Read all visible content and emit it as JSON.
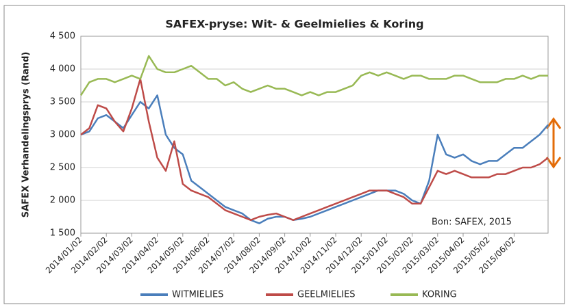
{
  "chart_data": {
    "type": "line",
    "title": "SAFEX-pryse: Wit- & Geelmielies & Koring",
    "y_label": "SAFEX Verhandelingsprys (Rand)",
    "annotation": "Bon: SAFEX, 2015",
    "categories": [
      "2014/01/02",
      null,
      null,
      "2014/02/02",
      null,
      null,
      "2014/03/02",
      null,
      null,
      "2014/04/02",
      null,
      null,
      "2014/05/02",
      null,
      null,
      "2014/06/02",
      null,
      null,
      "2014/07/02",
      null,
      null,
      "2014/08/02",
      null,
      null,
      "2014/09/02",
      null,
      null,
      "2014/10/02",
      null,
      null,
      "2014/11/02",
      null,
      null,
      "2014/12/02",
      null,
      null,
      "2015/01/02",
      null,
      null,
      "2015/02/02",
      null,
      null,
      "2015/03/02",
      null,
      null,
      "2015/04/02",
      null,
      null,
      "2015/05/02",
      null,
      null,
      "2015/06/02",
      null,
      null,
      null,
      null
    ],
    "series": [
      {
        "name": "WITMIELIES",
        "color": "#4a7ebb",
        "values": [
          3000,
          3050,
          3250,
          3300,
          3200,
          3100,
          3300,
          3500,
          3400,
          3600,
          3000,
          2800,
          2700,
          2300,
          2200,
          2100,
          2000,
          1900,
          1850,
          1800,
          1700,
          1650,
          1720,
          1750,
          1750,
          1700,
          1720,
          1750,
          1800,
          1850,
          1900,
          1950,
          2000,
          2050,
          2100,
          2150,
          2150,
          2150,
          2100,
          2000,
          1950,
          2300,
          3000,
          2700,
          2650,
          2700,
          2600,
          2550,
          2600,
          2600,
          2700,
          2800,
          2800,
          2900,
          3000,
          3150
        ]
      },
      {
        "name": "GEELMIELIES",
        "color": "#be4b48",
        "values": [
          3000,
          3100,
          3450,
          3400,
          3200,
          3050,
          3400,
          3850,
          3200,
          2650,
          2450,
          2900,
          2250,
          2150,
          2100,
          2050,
          1950,
          1850,
          1800,
          1750,
          1700,
          1750,
          1780,
          1800,
          1750,
          1700,
          1750,
          1800,
          1850,
          1900,
          1950,
          2000,
          2050,
          2100,
          2150,
          2150,
          2150,
          2100,
          2050,
          1950,
          1950,
          2200,
          2450,
          2400,
          2450,
          2400,
          2350,
          2350,
          2350,
          2400,
          2400,
          2450,
          2500,
          2500,
          2550,
          2650
        ]
      },
      {
        "name": "KORING",
        "color": "#98b954",
        "values": [
          3600,
          3800,
          3850,
          3850,
          3800,
          3850,
          3900,
          3850,
          4200,
          4000,
          3950,
          3950,
          4000,
          4050,
          3950,
          3850,
          3850,
          3750,
          3800,
          3700,
          3650,
          3700,
          3750,
          3700,
          3700,
          3650,
          3600,
          3650,
          3600,
          3650,
          3650,
          3700,
          3750,
          3900,
          3950,
          3900,
          3950,
          3900,
          3850,
          3900,
          3900,
          3850,
          3850,
          3850,
          3900,
          3900,
          3850,
          3800,
          3800,
          3800,
          3850,
          3850,
          3900,
          3850,
          3900,
          3900
        ]
      }
    ],
    "ylim": [
      1500,
      4500
    ],
    "yticks": [
      {
        "value": 1500,
        "label": "1 500"
      },
      {
        "value": 2000,
        "label": "2 000"
      },
      {
        "value": 2500,
        "label": "2 500"
      },
      {
        "value": 3000,
        "label": "3 000"
      },
      {
        "value": 3500,
        "label": "3 500"
      },
      {
        "value": 4000,
        "label": "4 000"
      },
      {
        "value": 4500,
        "label": "4 500"
      }
    ],
    "grid": true,
    "legend": "bottom"
  }
}
